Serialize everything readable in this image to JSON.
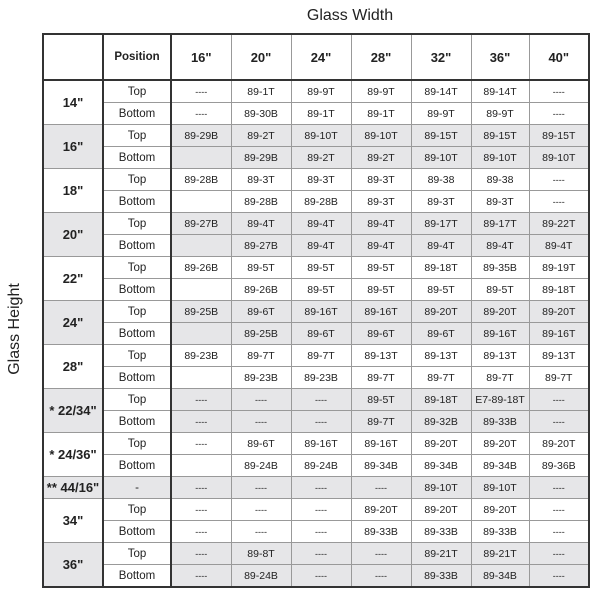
{
  "titles": {
    "glass_width": "Glass Width",
    "glass_height": "Glass Height"
  },
  "header": {
    "position": "Position",
    "widths": [
      "16\"",
      "20\"",
      "24\"",
      "28\"",
      "32\"",
      "36\"",
      "40\""
    ]
  },
  "shade_color": "#e6e6e8",
  "groups": [
    {
      "height": "14\"",
      "shaded": false,
      "rows": [
        {
          "position": "Top",
          "values": [
            "----",
            "89-1T",
            "89-9T",
            "89-9T",
            "89-14T",
            "89-14T",
            "----"
          ]
        },
        {
          "position": "Bottom",
          "values": [
            "----",
            "89-30B",
            "89-1T",
            "89-1T",
            "89-9T",
            "89-9T",
            "----"
          ]
        }
      ]
    },
    {
      "height": "16\"",
      "shaded": true,
      "rows": [
        {
          "position": "Top",
          "values": [
            "89-29B",
            "89-2T",
            "89-10T",
            "89-10T",
            "89-15T",
            "89-15T",
            "89-15T"
          ]
        },
        {
          "position": "Bottom",
          "values": [
            "",
            "89-29B",
            "89-2T",
            "89-2T",
            "89-10T",
            "89-10T",
            "89-10T"
          ]
        }
      ]
    },
    {
      "height": "18\"",
      "shaded": false,
      "rows": [
        {
          "position": "Top",
          "values": [
            "89-28B",
            "89-3T",
            "89-3T",
            "89-3T",
            "89-38",
            "89-38",
            "----"
          ]
        },
        {
          "position": "Bottom",
          "values": [
            "",
            "89-28B",
            "89-28B",
            "89-3T",
            "89-3T",
            "89-3T",
            "----"
          ]
        }
      ]
    },
    {
      "height": "20\"",
      "shaded": true,
      "rows": [
        {
          "position": "Top",
          "values": [
            "89-27B",
            "89-4T",
            "89-4T",
            "89-4T",
            "89-17T",
            "89-17T",
            "89-22T"
          ]
        },
        {
          "position": "Bottom",
          "values": [
            "",
            "89-27B",
            "89-4T",
            "89-4T",
            "89-4T",
            "89-4T",
            "89-4T"
          ]
        }
      ]
    },
    {
      "height": "22\"",
      "shaded": false,
      "rows": [
        {
          "position": "Top",
          "values": [
            "89-26B",
            "89-5T",
            "89-5T",
            "89-5T",
            "89-18T",
            "89-35B",
            "89-19T"
          ]
        },
        {
          "position": "Bottom",
          "values": [
            "",
            "89-26B",
            "89-5T",
            "89-5T",
            "89-5T",
            "89-5T",
            "89-18T"
          ]
        }
      ]
    },
    {
      "height": "24\"",
      "shaded": true,
      "rows": [
        {
          "position": "Top",
          "values": [
            "89-25B",
            "89-6T",
            "89-16T",
            "89-16T",
            "89-20T",
            "89-20T",
            "89-20T"
          ]
        },
        {
          "position": "Bottom",
          "values": [
            "",
            "89-25B",
            "89-6T",
            "89-6T",
            "89-6T",
            "89-16T",
            "89-16T"
          ]
        }
      ]
    },
    {
      "height": "28\"",
      "shaded": false,
      "rows": [
        {
          "position": "Top",
          "values": [
            "89-23B",
            "89-7T",
            "89-7T",
            "89-13T",
            "89-13T",
            "89-13T",
            "89-13T"
          ]
        },
        {
          "position": "Bottom",
          "values": [
            "",
            "89-23B",
            "89-23B",
            "89-7T",
            "89-7T",
            "89-7T",
            "89-7T"
          ]
        }
      ]
    },
    {
      "height": "* 22/34\"",
      "shaded": true,
      "rows": [
        {
          "position": "Top",
          "values": [
            "----",
            "----",
            "----",
            "89-5T",
            "89-18T",
            "E7-89-18T",
            "----"
          ]
        },
        {
          "position": "Bottom",
          "values": [
            "----",
            "----",
            "----",
            "89-7T",
            "89-32B",
            "89-33B",
            "----"
          ]
        }
      ]
    },
    {
      "height": "* 24/36\"",
      "shaded": false,
      "rows": [
        {
          "position": "Top",
          "values": [
            "----",
            "89-6T",
            "89-16T",
            "89-16T",
            "89-20T",
            "89-20T",
            "89-20T"
          ]
        },
        {
          "position": "Bottom",
          "values": [
            "",
            "89-24B",
            "89-24B",
            "89-34B",
            "89-34B",
            "89-34B",
            "89-36B"
          ]
        }
      ]
    },
    {
      "height": "** 44/16\"",
      "shaded": true,
      "rows": [
        {
          "position": "-",
          "values": [
            "----",
            "----",
            "----",
            "----",
            "89-10T",
            "89-10T",
            "----"
          ]
        }
      ]
    },
    {
      "height": "34\"",
      "shaded": false,
      "rows": [
        {
          "position": "Top",
          "values": [
            "----",
            "----",
            "----",
            "89-20T",
            "89-20T",
            "89-20T",
            "----"
          ]
        },
        {
          "position": "Bottom",
          "values": [
            "----",
            "----",
            "----",
            "89-33B",
            "89-33B",
            "89-33B",
            "----"
          ]
        }
      ]
    },
    {
      "height": "36\"",
      "shaded": true,
      "rows": [
        {
          "position": "Top",
          "values": [
            "----",
            "89-8T",
            "----",
            "----",
            "89-21T",
            "89-21T",
            "----"
          ]
        },
        {
          "position": "Bottom",
          "values": [
            "----",
            "89-24B",
            "----",
            "----",
            "89-33B",
            "89-34B",
            "----"
          ]
        }
      ]
    }
  ]
}
